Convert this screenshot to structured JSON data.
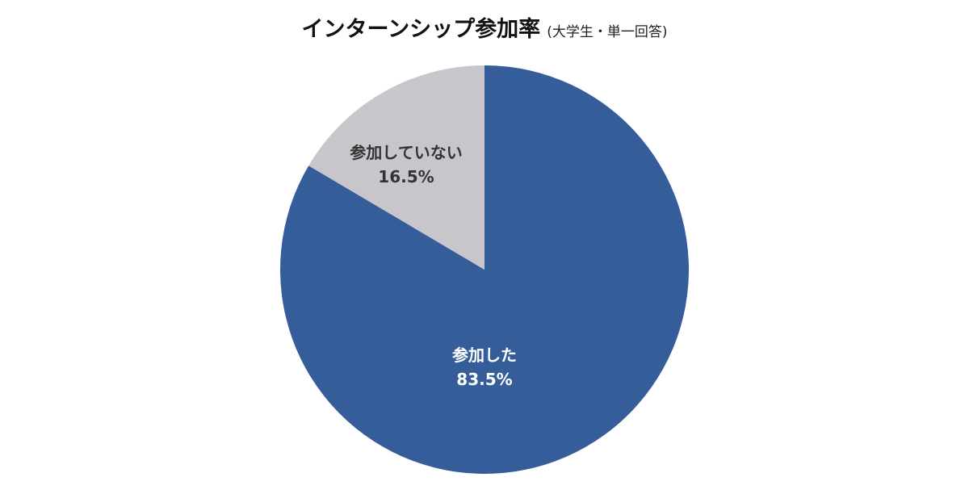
{
  "chart_data": {
    "type": "pie",
    "title": "インターンシップ参加率",
    "subtitle": "(大学生・単一回答)",
    "categories": [
      "参加した",
      "参加していない"
    ],
    "values": [
      83.5,
      16.5
    ],
    "value_labels": [
      "83.5%",
      "16.5%"
    ],
    "colors": [
      "#355d9a",
      "#c8c6cb"
    ],
    "label_colors": [
      "#ffffff",
      "#333333"
    ],
    "start_angle_deg": 0,
    "direction": "clockwise",
    "legend": "none"
  },
  "labels": {
    "joined": {
      "name": "参加した",
      "value": "83.5%"
    },
    "not_joined": {
      "name": "参加していない",
      "value": "16.5%"
    }
  }
}
